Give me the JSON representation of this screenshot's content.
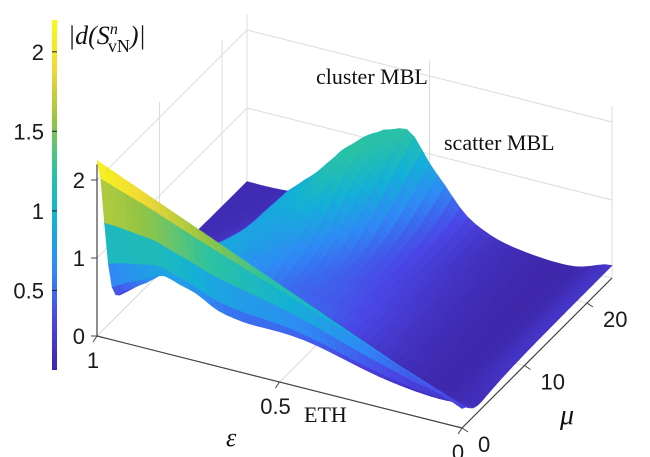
{
  "chart_data": {
    "type": "surface3d",
    "colorbar": {
      "label": "|d(S",
      "label_sup": "n",
      "label_sub": "vN",
      "label_close": ")|",
      "ticks": [
        "0.5",
        "1",
        "1.5",
        "2"
      ],
      "range": [
        0,
        2.2
      ],
      "colormap": [
        "#3e26a8",
        "#4a46e6",
        "#2f8af5",
        "#13b1d6",
        "#2cc3a0",
        "#96c542",
        "#f0d838",
        "#f9fb15"
      ]
    },
    "axes": {
      "x": {
        "symbol": "ε",
        "ticks": [
          "1",
          "0.5",
          "0"
        ],
        "range": [
          1,
          0
        ]
      },
      "y": {
        "symbol": "μ",
        "ticks": [
          "0",
          "10",
          "20"
        ],
        "range": [
          0,
          24
        ]
      },
      "z": {
        "ticks": [
          "0",
          "1",
          "2"
        ],
        "range": [
          0,
          2.2
        ]
      }
    },
    "annotations": [
      "cluster MBL",
      "scatter MBL",
      "ETH"
    ],
    "grid": true
  }
}
